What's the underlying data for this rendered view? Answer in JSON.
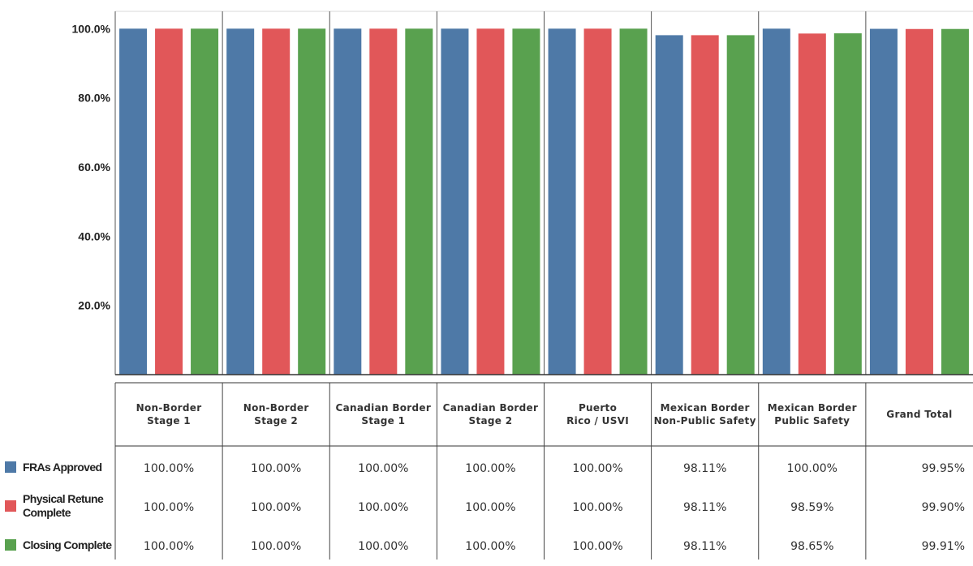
{
  "chart_data": {
    "type": "bar",
    "categories": [
      "Non-Border\nStage 1",
      "Non-Border\nStage 2",
      "Canadian Border\nStage 1",
      "Canadian Border\nStage 2",
      "Puerto\nRico / USVI",
      "Mexican Border\nNon-Public Safety",
      "Mexican Border\nPublic Safety",
      "Grand Total"
    ],
    "series": [
      {
        "name": "FRAs Approved",
        "color": "#4e79a7",
        "values": [
          100.0,
          100.0,
          100.0,
          100.0,
          100.0,
          98.11,
          100.0,
          99.95
        ],
        "labels": [
          "100.00%",
          "100.00%",
          "100.00%",
          "100.00%",
          "100.00%",
          "98.11%",
          "100.00%",
          "99.95%"
        ]
      },
      {
        "name": "Physical Retune\nComplete",
        "color": "#e15759",
        "values": [
          100.0,
          100.0,
          100.0,
          100.0,
          100.0,
          98.11,
          98.59,
          99.9
        ],
        "labels": [
          "100.00%",
          "100.00%",
          "100.00%",
          "100.00%",
          "100.00%",
          "98.11%",
          "98.59%",
          "99.90%"
        ]
      },
      {
        "name": "Closing Complete",
        "color": "#59a14f",
        "values": [
          100.0,
          100.0,
          100.0,
          100.0,
          100.0,
          98.11,
          98.65,
          99.91
        ],
        "labels": [
          "100.00%",
          "100.00%",
          "100.00%",
          "100.00%",
          "100.00%",
          "98.11%",
          "98.65%",
          "99.91%"
        ]
      }
    ],
    "yticks": [
      "20.0%",
      "40.0%",
      "60.0%",
      "80.0%",
      "100.0%"
    ],
    "ytick_values": [
      20,
      40,
      60,
      80,
      100
    ],
    "ylim": [
      0,
      105
    ],
    "xlabel": "",
    "ylabel": "",
    "title": "",
    "legend_position": "left-of-table",
    "grid": false
  }
}
